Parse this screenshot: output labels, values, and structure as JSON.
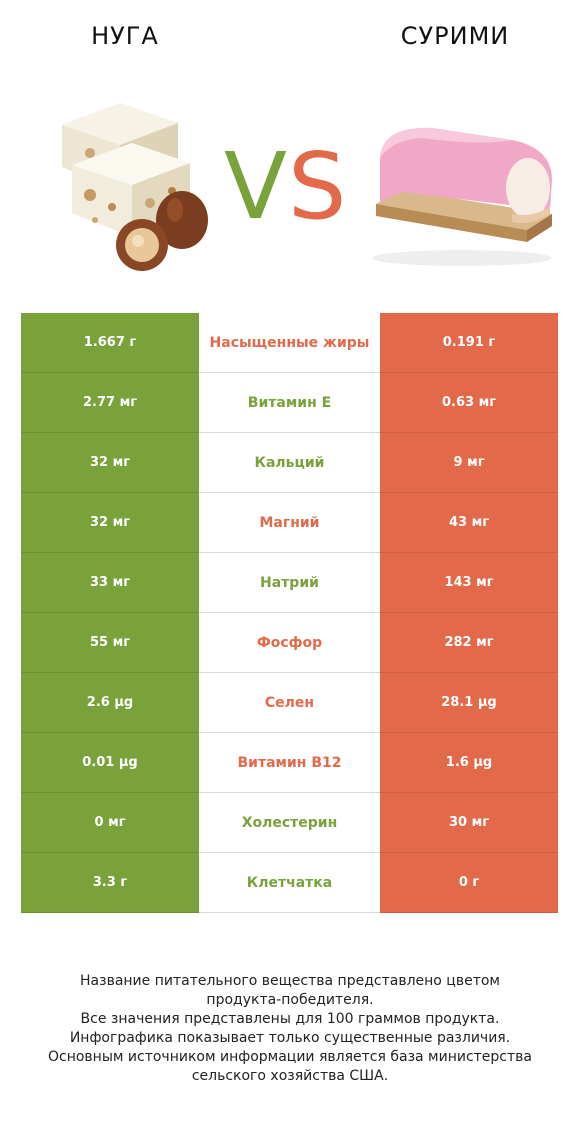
{
  "header": {
    "left_title": "НУГА",
    "right_title": "СУРИМИ",
    "vs_v": "V",
    "vs_s": "S"
  },
  "colors": {
    "left_winner": "#7aa23b",
    "right_winner": "#e26a4a"
  },
  "rows": [
    {
      "left": "1.667 г",
      "nutrient": "Насыщенные жиры",
      "right": "0.191 г",
      "winner": "right"
    },
    {
      "left": "2.77 мг",
      "nutrient": "Витамин E",
      "right": "0.63 мг",
      "winner": "left"
    },
    {
      "left": "32 мг",
      "nutrient": "Кальций",
      "right": "9 мг",
      "winner": "left"
    },
    {
      "left": "32 мг",
      "nutrient": "Магний",
      "right": "43 мг",
      "winner": "right"
    },
    {
      "left": "33 мг",
      "nutrient": "Натрий",
      "right": "143 мг",
      "winner": "left"
    },
    {
      "left": "55 мг",
      "nutrient": "Фосфор",
      "right": "282 мг",
      "winner": "right"
    },
    {
      "left": "2.6 µg",
      "nutrient": "Селен",
      "right": "28.1 µg",
      "winner": "right"
    },
    {
      "left": "0.01 µg",
      "nutrient": "Витамин B12",
      "right": "1.6 µg",
      "winner": "right"
    },
    {
      "left": "0 мг",
      "nutrient": "Холестерин",
      "right": "30 мг",
      "winner": "left"
    },
    {
      "left": "3.3 г",
      "nutrient": "Клетчатка",
      "right": "0 г",
      "winner": "left"
    }
  ],
  "footer": {
    "line1": "Название питательного вещества представлено цветом",
    "line2": "продукта-победителя.",
    "line3": "Все значения представлены для 100 граммов продукта.",
    "line4": "Инфографика показывает только существенные различия.",
    "line5": "Основным источником информации является база министерства",
    "line6": "сельского хозяйства США."
  }
}
